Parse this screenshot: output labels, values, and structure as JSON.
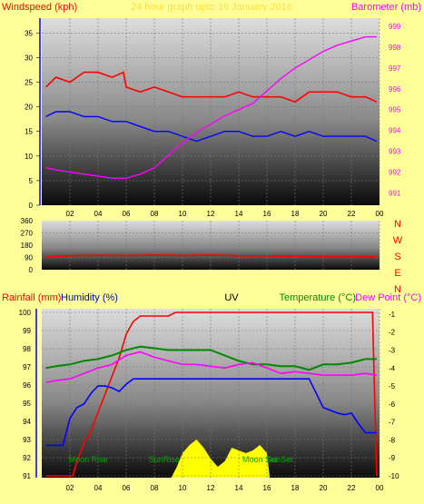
{
  "header": {
    "left_label": "Windspeed (kph)",
    "title": "24 hour graph upto 16 January 2016",
    "right_label": "Barometer (mb)"
  },
  "bottom_header": {
    "rainfall": "Rainfall (mm)",
    "humidity": "Humidity (%)",
    "uv": "UV",
    "temperature": "Temperature (°C)",
    "dewpoint": "Dew Point (°C)"
  },
  "colors": {
    "background": "#ffff99",
    "wind": "#ff0000",
    "gust": "#0000ff",
    "barometer": "#ff00ff",
    "direction": "#ff0000",
    "rain": "#ff0000",
    "humidity": "#0000ff",
    "temperature": "#008800",
    "dewpoint": "#ff00ff",
    "solar": "#ffff00"
  },
  "chart_data": [
    {
      "type": "line",
      "name": "wind-barometer",
      "x_ticks": [
        "02",
        "04",
        "06",
        "08",
        "10",
        "12",
        "14",
        "16",
        "18",
        "20",
        "22",
        "00"
      ],
      "y_left_ticks": [
        0,
        5,
        10,
        15,
        20,
        25,
        30,
        35
      ],
      "y_right_ticks": [
        991,
        992,
        993,
        994,
        995,
        996,
        997,
        998,
        999
      ],
      "ylim_left": [
        0,
        38
      ],
      "ylim_right": [
        990.4,
        999.4
      ],
      "series": [
        {
          "color": "#ff0000",
          "axis": "left",
          "x": [
            0.3,
            1,
            2,
            3,
            4,
            5,
            5.8,
            6,
            7,
            8,
            9,
            10,
            11,
            12,
            13,
            14,
            15,
            16,
            17,
            18,
            19,
            20,
            21,
            22,
            23,
            23.8
          ],
          "y": [
            24,
            26,
            25,
            27,
            27,
            26,
            27,
            24,
            23,
            24,
            23,
            22,
            22,
            22,
            22,
            23,
            22,
            22,
            22,
            21,
            23,
            23,
            23,
            22,
            22,
            21
          ]
        },
        {
          "color": "#0000ff",
          "axis": "left",
          "x": [
            0.3,
            1,
            2,
            3,
            4,
            5,
            6,
            7,
            8,
            9,
            10,
            11,
            12,
            13,
            14,
            15,
            16,
            17,
            18,
            19,
            20,
            21,
            22,
            23,
            23.8
          ],
          "y": [
            18,
            19,
            19,
            18,
            18,
            17,
            17,
            16,
            15,
            15,
            14,
            13,
            14,
            15,
            15,
            14,
            14,
            15,
            14,
            15,
            14,
            14,
            14,
            14,
            13
          ]
        },
        {
          "color": "#ff00ff",
          "axis": "right",
          "x": [
            0.3,
            1,
            2,
            3,
            4,
            5,
            6,
            7,
            8,
            9,
            10,
            11,
            12,
            13,
            14,
            15,
            16,
            17,
            18,
            19,
            20,
            21,
            22,
            23,
            23.8
          ],
          "y": [
            992.2,
            992.1,
            992.0,
            991.9,
            991.8,
            991.7,
            991.7,
            991.9,
            992.2,
            992.8,
            993.4,
            993.9,
            994.3,
            994.7,
            995.0,
            995.3,
            995.9,
            996.5,
            997.0,
            997.4,
            997.8,
            998.1,
            998.3,
            998.5,
            998.5
          ]
        }
      ]
    },
    {
      "type": "line",
      "name": "wind-direction",
      "y_ticks": [
        0,
        90,
        180,
        270,
        360
      ],
      "y_right_labels": [
        "N",
        "W",
        "S",
        "E",
        "N"
      ],
      "ylim": [
        0,
        360
      ],
      "series": [
        {
          "color": "#ff0000",
          "x": [
            0.3,
            2,
            4,
            6,
            8,
            10,
            12,
            14,
            16,
            18,
            20,
            22,
            23.8
          ],
          "y": [
            95,
            102,
            106,
            104,
            108,
            104,
            108,
            102,
            100,
            98,
            96,
            96,
            94
          ]
        }
      ]
    },
    {
      "type": "line",
      "name": "rain-temp-humidity",
      "y_left_ticks": [
        91,
        92,
        93,
        94,
        95,
        96,
        97,
        98,
        99,
        100
      ],
      "y_right_ticks": [
        -1,
        -2,
        -3,
        -4,
        -5,
        -6,
        -7,
        -8,
        -9,
        -10
      ],
      "ylim_left": [
        90.9,
        100.2
      ],
      "ylim_right": [
        -10.1,
        -0.7
      ],
      "series": [
        {
          "color": "#ff0000",
          "axis": "rain_overlay",
          "x": [
            0.3,
            1.5,
            2.2,
            2.5,
            3,
            3.5,
            4,
            4.5,
            5,
            5.5,
            6,
            6.5,
            7,
            7.5,
            8,
            9,
            9.5,
            10,
            12,
            14,
            16,
            18,
            20,
            22,
            23.5,
            23.8
          ],
          "y": [
            91,
            91,
            91,
            91.8,
            92.8,
            93.5,
            94.5,
            95.5,
            96.5,
            97.5,
            98.8,
            99.5,
            99.8,
            99.8,
            99.8,
            99.8,
            100,
            100,
            100,
            100,
            100,
            100,
            100,
            100,
            100,
            91
          ]
        },
        {
          "color": "#0000ff",
          "axis": "right",
          "x": [
            0.3,
            1.5,
            2,
            2.5,
            3,
            3.5,
            4,
            4.5,
            5,
            5.5,
            6,
            6.5,
            7,
            8,
            9,
            10,
            11,
            12,
            13,
            14,
            15,
            16,
            17,
            18,
            19,
            20,
            21,
            21.5,
            22,
            22.5,
            23,
            23.8
          ],
          "y": [
            -8.3,
            -8.3,
            -6.8,
            -6.2,
            -6.0,
            -5.4,
            -5.0,
            -5.0,
            -5.1,
            -5.3,
            -4.9,
            -4.6,
            -4.6,
            -4.6,
            -4.6,
            -4.6,
            -4.6,
            -4.6,
            -4.6,
            -4.6,
            -4.6,
            -4.6,
            -4.6,
            -4.6,
            -4.6,
            -6.2,
            -6.5,
            -6.6,
            -6.5,
            -7.1,
            -7.6,
            -7.6
          ]
        },
        {
          "color": "#008800",
          "axis": "right",
          "x": [
            0.3,
            1,
            2,
            3,
            4,
            5,
            6,
            7,
            8,
            9,
            10,
            11,
            12,
            13,
            14,
            15,
            16,
            17,
            18,
            19,
            20,
            21,
            22,
            23,
            23.8
          ],
          "y": [
            -4.0,
            -3.9,
            -3.8,
            -3.6,
            -3.5,
            -3.3,
            -3.0,
            -2.8,
            -2.9,
            -3.0,
            -3.0,
            -3.0,
            -3.0,
            -3.3,
            -3.6,
            -3.8,
            -3.8,
            -3.9,
            -3.9,
            -4.1,
            -3.8,
            -3.8,
            -3.7,
            -3.5,
            -3.5
          ]
        },
        {
          "color": "#ff00ff",
          "axis": "right",
          "x": [
            0.3,
            1,
            2,
            3,
            4,
            5,
            6,
            7,
            8,
            9,
            10,
            11,
            12,
            13,
            14,
            15,
            16,
            17,
            18,
            19,
            20,
            21,
            22,
            23,
            23.8
          ],
          "y": [
            -4.8,
            -4.7,
            -4.6,
            -4.3,
            -4.0,
            -3.8,
            -3.3,
            -3.1,
            -3.4,
            -3.6,
            -3.8,
            -3.8,
            -3.9,
            -4.0,
            -3.8,
            -3.7,
            -4.0,
            -4.3,
            -4.2,
            -4.3,
            -4.4,
            -4.4,
            -4.4,
            -4.3,
            -4.4
          ]
        }
      ],
      "solar_x": [
        9.2,
        9.6,
        10,
        10.5,
        11,
        11.5,
        12,
        12.5,
        13,
        13.5,
        14,
        14.5,
        15,
        15.5,
        16,
        16.2
      ],
      "solar_y": [
        0,
        0.2,
        0.45,
        0.6,
        0.7,
        0.55,
        0.35,
        0.2,
        0.3,
        0.55,
        0.5,
        0.45,
        0.5,
        0.6,
        0.45,
        0
      ],
      "annotations": [
        {
          "text": "Moon Rise",
          "x": 3.3
        },
        {
          "text": "SunRise",
          "x": 8.7
        },
        {
          "text": "Moon Set",
          "x": 15.5
        },
        {
          "text": "SunSet",
          "x": 16.9
        }
      ]
    }
  ]
}
